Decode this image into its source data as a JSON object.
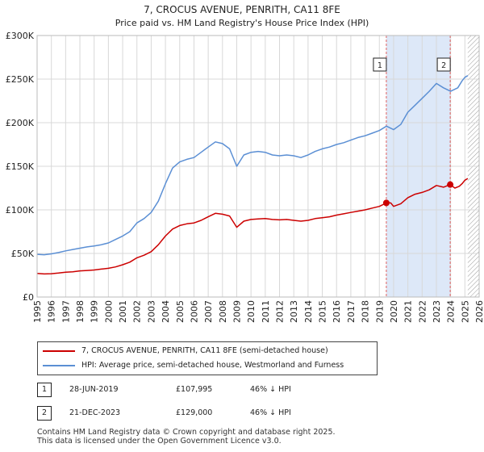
{
  "chart_data": {
    "type": "line",
    "title": "7, CROCUS AVENUE, PENRITH, CA11 8FE",
    "subtitle": "Price paid vs. HM Land Registry's House Price Index (HPI)",
    "xlabel": "",
    "ylabel": "",
    "xlim": [
      1995,
      2026
    ],
    "ylim": [
      0,
      300000
    ],
    "ytick_labels": [
      "£0",
      "£50K",
      "£100K",
      "£150K",
      "£200K",
      "£250K",
      "£300K"
    ],
    "ytick_values": [
      0,
      50000,
      100000,
      150000,
      200000,
      250000,
      300000
    ],
    "xtick_labels": [
      "1995",
      "1996",
      "1997",
      "1998",
      "1999",
      "2000",
      "2001",
      "2002",
      "2003",
      "2004",
      "2005",
      "2006",
      "2007",
      "2008",
      "2009",
      "2010",
      "2011",
      "2012",
      "2013",
      "2014",
      "2015",
      "2016",
      "2017",
      "2018",
      "2019",
      "2020",
      "2021",
      "2022",
      "2023",
      "2024",
      "2025",
      "2026"
    ],
    "grid": true,
    "colors": {
      "property": "#cc0000",
      "hpi": "#5b8fd4",
      "shade": "#dde8f8",
      "vline": "#e06060",
      "hatch": "#999999"
    },
    "series": [
      {
        "name": "7, CROCUS AVENUE, PENRITH, CA11 8FE (semi-detached house)",
        "x": [
          1995.0,
          1995.5,
          1996.0,
          1996.5,
          1997.0,
          1997.5,
          1998.0,
          1998.5,
          1999.0,
          1999.5,
          2000.0,
          2000.5,
          2001.0,
          2001.5,
          2002.0,
          2002.5,
          2003.0,
          2003.5,
          2004.0,
          2004.5,
          2005.0,
          2005.5,
          2006.0,
          2006.5,
          2007.0,
          2007.5,
          2008.0,
          2008.5,
          2009.0,
          2009.5,
          2010.0,
          2010.5,
          2011.0,
          2011.5,
          2012.0,
          2012.5,
          2013.0,
          2013.5,
          2014.0,
          2014.5,
          2015.0,
          2015.5,
          2016.0,
          2016.5,
          2017.0,
          2017.5,
          2018.0,
          2018.5,
          2019.0,
          2019.49,
          2019.8,
          2020.0,
          2020.5,
          2021.0,
          2021.5,
          2022.0,
          2022.5,
          2023.0,
          2023.5,
          2023.97,
          2024.3,
          2024.6,
          2024.8,
          2025.0,
          2025.2
        ],
        "values": [
          27000,
          26500,
          26800,
          27500,
          28500,
          29000,
          30000,
          30500,
          31000,
          32000,
          33000,
          34500,
          37000,
          40000,
          45000,
          48000,
          52000,
          60000,
          70000,
          78000,
          82000,
          84000,
          85000,
          88000,
          92000,
          96000,
          95000,
          93000,
          80000,
          87000,
          89000,
          89500,
          90000,
          89000,
          88500,
          89000,
          88000,
          87000,
          88000,
          90000,
          91000,
          92000,
          94000,
          95500,
          97000,
          98500,
          100000,
          102000,
          104000,
          107995,
          108000,
          104000,
          107000,
          114000,
          118000,
          120000,
          123000,
          128000,
          126000,
          129000,
          125000,
          127000,
          130000,
          134000,
          136000
        ]
      },
      {
        "name": "HPI: Average price, semi-detached house, Westmorland and Furness",
        "x": [
          1995.0,
          1995.5,
          1996.0,
          1996.5,
          1997.0,
          1997.5,
          1998.0,
          1998.5,
          1999.0,
          1999.5,
          2000.0,
          2000.5,
          2001.0,
          2001.5,
          2002.0,
          2002.5,
          2003.0,
          2003.5,
          2004.0,
          2004.5,
          2005.0,
          2005.5,
          2006.0,
          2006.5,
          2007.0,
          2007.5,
          2008.0,
          2008.5,
          2009.0,
          2009.5,
          2010.0,
          2010.5,
          2011.0,
          2011.5,
          2012.0,
          2012.5,
          2013.0,
          2013.5,
          2014.0,
          2014.5,
          2015.0,
          2015.5,
          2016.0,
          2016.5,
          2017.0,
          2017.5,
          2018.0,
          2018.5,
          2019.0,
          2019.5,
          2020.0,
          2020.5,
          2021.0,
          2021.5,
          2022.0,
          2022.5,
          2023.0,
          2023.5,
          2024.0,
          2024.5,
          2024.8,
          2025.0,
          2025.2
        ],
        "values": [
          49000,
          48500,
          49500,
          51000,
          53000,
          54500,
          56000,
          57500,
          58500,
          60000,
          62000,
          66000,
          70000,
          75000,
          85000,
          90000,
          97000,
          110000,
          130000,
          148000,
          155000,
          158000,
          160000,
          166000,
          172000,
          178000,
          176000,
          170000,
          150000,
          163000,
          166000,
          167000,
          166000,
          163000,
          162000,
          163000,
          162000,
          160000,
          163000,
          167000,
          170000,
          172000,
          175000,
          177000,
          180000,
          183000,
          185000,
          188000,
          191000,
          196000,
          192000,
          198000,
          212000,
          220000,
          228000,
          236000,
          245000,
          240000,
          236000,
          240000,
          248000,
          252000,
          254000
        ]
      }
    ],
    "annotations": [
      {
        "label": "1",
        "x": 2019.49
      },
      {
        "label": "2",
        "x": 2023.97
      }
    ],
    "sales": [
      {
        "label": "1",
        "x": 2019.49,
        "value": 107995
      },
      {
        "label": "2",
        "x": 2023.97,
        "value": 129000
      }
    ],
    "shade_range": [
      2019.49,
      2023.97
    ],
    "hatch_from": 2025.2
  },
  "legend": [
    {
      "label": "7, CROCUS AVENUE, PENRITH, CA11 8FE (semi-detached house)",
      "color": "#cc0000"
    },
    {
      "label": "HPI: Average price, semi-detached house, Westmorland and Furness",
      "color": "#5b8fd4"
    }
  ],
  "transactions": [
    {
      "num": "1",
      "date": "28-JUN-2019",
      "price": "£107,995",
      "hpi": "46% ↓ HPI"
    },
    {
      "num": "2",
      "date": "21-DEC-2023",
      "price": "£129,000",
      "hpi": "46% ↓ HPI"
    }
  ],
  "footer": {
    "line1": "Contains HM Land Registry data © Crown copyright and database right 2025.",
    "line2": "This data is licensed under the Open Government Licence v3.0."
  }
}
